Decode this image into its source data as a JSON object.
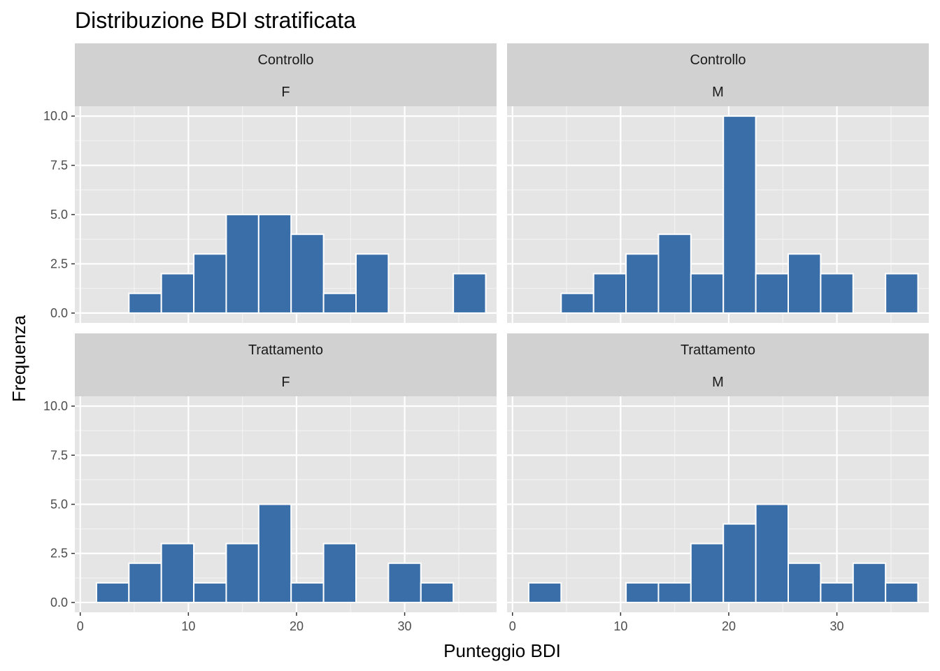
{
  "chart_data": {
    "type": "bar",
    "title": "Distribuzione BDI stratificata",
    "xlabel": "Punteggio BDI",
    "ylabel": "Frequenza",
    "bin_width": 3,
    "xlim": [
      -0.5,
      38.5
    ],
    "ylim": [
      -0.5,
      10.5
    ],
    "x_ticks": [
      0,
      10,
      20,
      30
    ],
    "y_ticks": [
      0,
      2.5,
      5,
      7.5,
      10
    ],
    "y_tick_labels": [
      "0.0",
      "2.5",
      "5.0",
      "7.5",
      "10.0"
    ],
    "grid": true,
    "bar_color": "#3a6ea8",
    "panel_background": "#e5e5e5",
    "strip_background": "#d1d1d1",
    "panels": [
      {
        "group": "Controllo",
        "sex": "F",
        "bins": [
          {
            "x": 6,
            "count": 1
          },
          {
            "x": 9,
            "count": 2
          },
          {
            "x": 12,
            "count": 3
          },
          {
            "x": 15,
            "count": 5
          },
          {
            "x": 18,
            "count": 5
          },
          {
            "x": 21,
            "count": 4
          },
          {
            "x": 24,
            "count": 1
          },
          {
            "x": 27,
            "count": 3
          },
          {
            "x": 36,
            "count": 2
          }
        ]
      },
      {
        "group": "Controllo",
        "sex": "M",
        "bins": [
          {
            "x": 6,
            "count": 1
          },
          {
            "x": 9,
            "count": 2
          },
          {
            "x": 12,
            "count": 3
          },
          {
            "x": 15,
            "count": 4
          },
          {
            "x": 18,
            "count": 2
          },
          {
            "x": 21,
            "count": 10
          },
          {
            "x": 24,
            "count": 2
          },
          {
            "x": 27,
            "count": 3
          },
          {
            "x": 30,
            "count": 2
          },
          {
            "x": 36,
            "count": 2
          }
        ]
      },
      {
        "group": "Trattamento",
        "sex": "F",
        "bins": [
          {
            "x": 3,
            "count": 1
          },
          {
            "x": 6,
            "count": 2
          },
          {
            "x": 9,
            "count": 3
          },
          {
            "x": 12,
            "count": 1
          },
          {
            "x": 15,
            "count": 3
          },
          {
            "x": 18,
            "count": 5
          },
          {
            "x": 21,
            "count": 1
          },
          {
            "x": 24,
            "count": 3
          },
          {
            "x": 30,
            "count": 2
          },
          {
            "x": 33,
            "count": 1
          }
        ]
      },
      {
        "group": "Trattamento",
        "sex": "M",
        "bins": [
          {
            "x": 3,
            "count": 1
          },
          {
            "x": 12,
            "count": 1
          },
          {
            "x": 15,
            "count": 1
          },
          {
            "x": 18,
            "count": 3
          },
          {
            "x": 21,
            "count": 4
          },
          {
            "x": 24,
            "count": 5
          },
          {
            "x": 27,
            "count": 2
          },
          {
            "x": 30,
            "count": 1
          },
          {
            "x": 33,
            "count": 2
          },
          {
            "x": 36,
            "count": 1
          }
        ]
      }
    ]
  }
}
